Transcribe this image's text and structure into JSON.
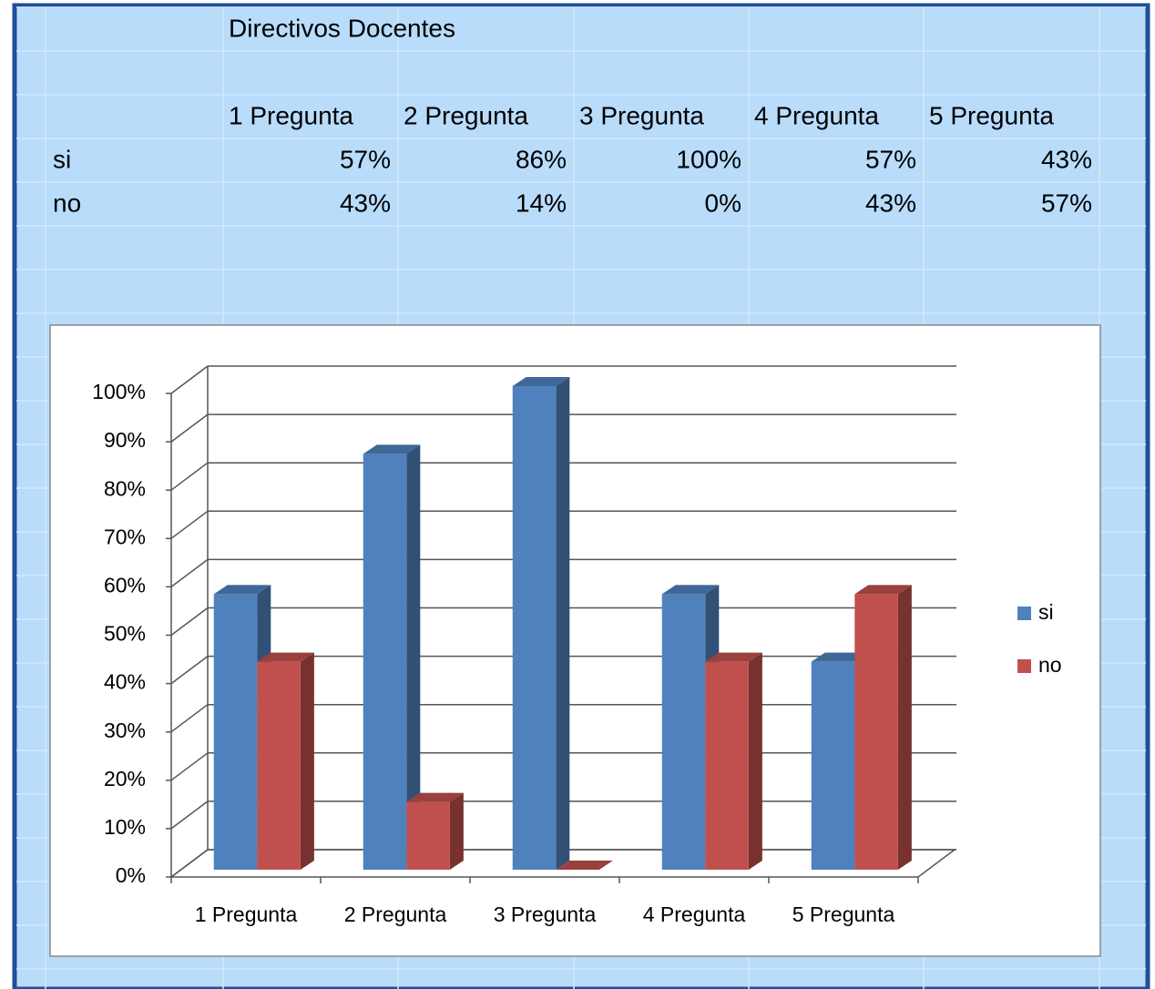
{
  "table": {
    "title": "Directivos Docentes",
    "header": [
      "1 Pregunta",
      "2 Pregunta",
      "3 Pregunta",
      "4 Pregunta",
      "5 Pregunta"
    ],
    "rows": [
      [
        "si",
        "57%",
        "86%",
        "100%",
        "57%",
        "43%"
      ],
      [
        "no",
        "43%",
        "14%",
        "0%",
        "43%",
        "57%"
      ]
    ]
  },
  "chart_data": {
    "type": "bar3d",
    "categories": [
      "1 Pregunta",
      "2 Pregunta",
      "3 Pregunta",
      "4 Pregunta",
      "5 Pregunta"
    ],
    "series": [
      {
        "name": "si",
        "color": "#4f81bd",
        "values": [
          57,
          86,
          100,
          57,
          43
        ]
      },
      {
        "name": "no",
        "color": "#c0504d",
        "values": [
          43,
          14,
          0,
          43,
          57
        ]
      }
    ],
    "ylim": [
      0,
      100
    ],
    "yticks": [
      {
        "value": 0,
        "label": "0%"
      },
      {
        "value": 10,
        "label": "10%"
      },
      {
        "value": 20,
        "label": "20%"
      },
      {
        "value": 30,
        "label": "30%"
      },
      {
        "value": 40,
        "label": "40%"
      },
      {
        "value": 50,
        "label": "50%"
      },
      {
        "value": 60,
        "label": "60%"
      },
      {
        "value": 70,
        "label": "70%"
      },
      {
        "value": 80,
        "label": "80%"
      },
      {
        "value": 90,
        "label": "90%"
      },
      {
        "value": 100,
        "label": "100%"
      }
    ],
    "grid": true,
    "legend": "right"
  }
}
